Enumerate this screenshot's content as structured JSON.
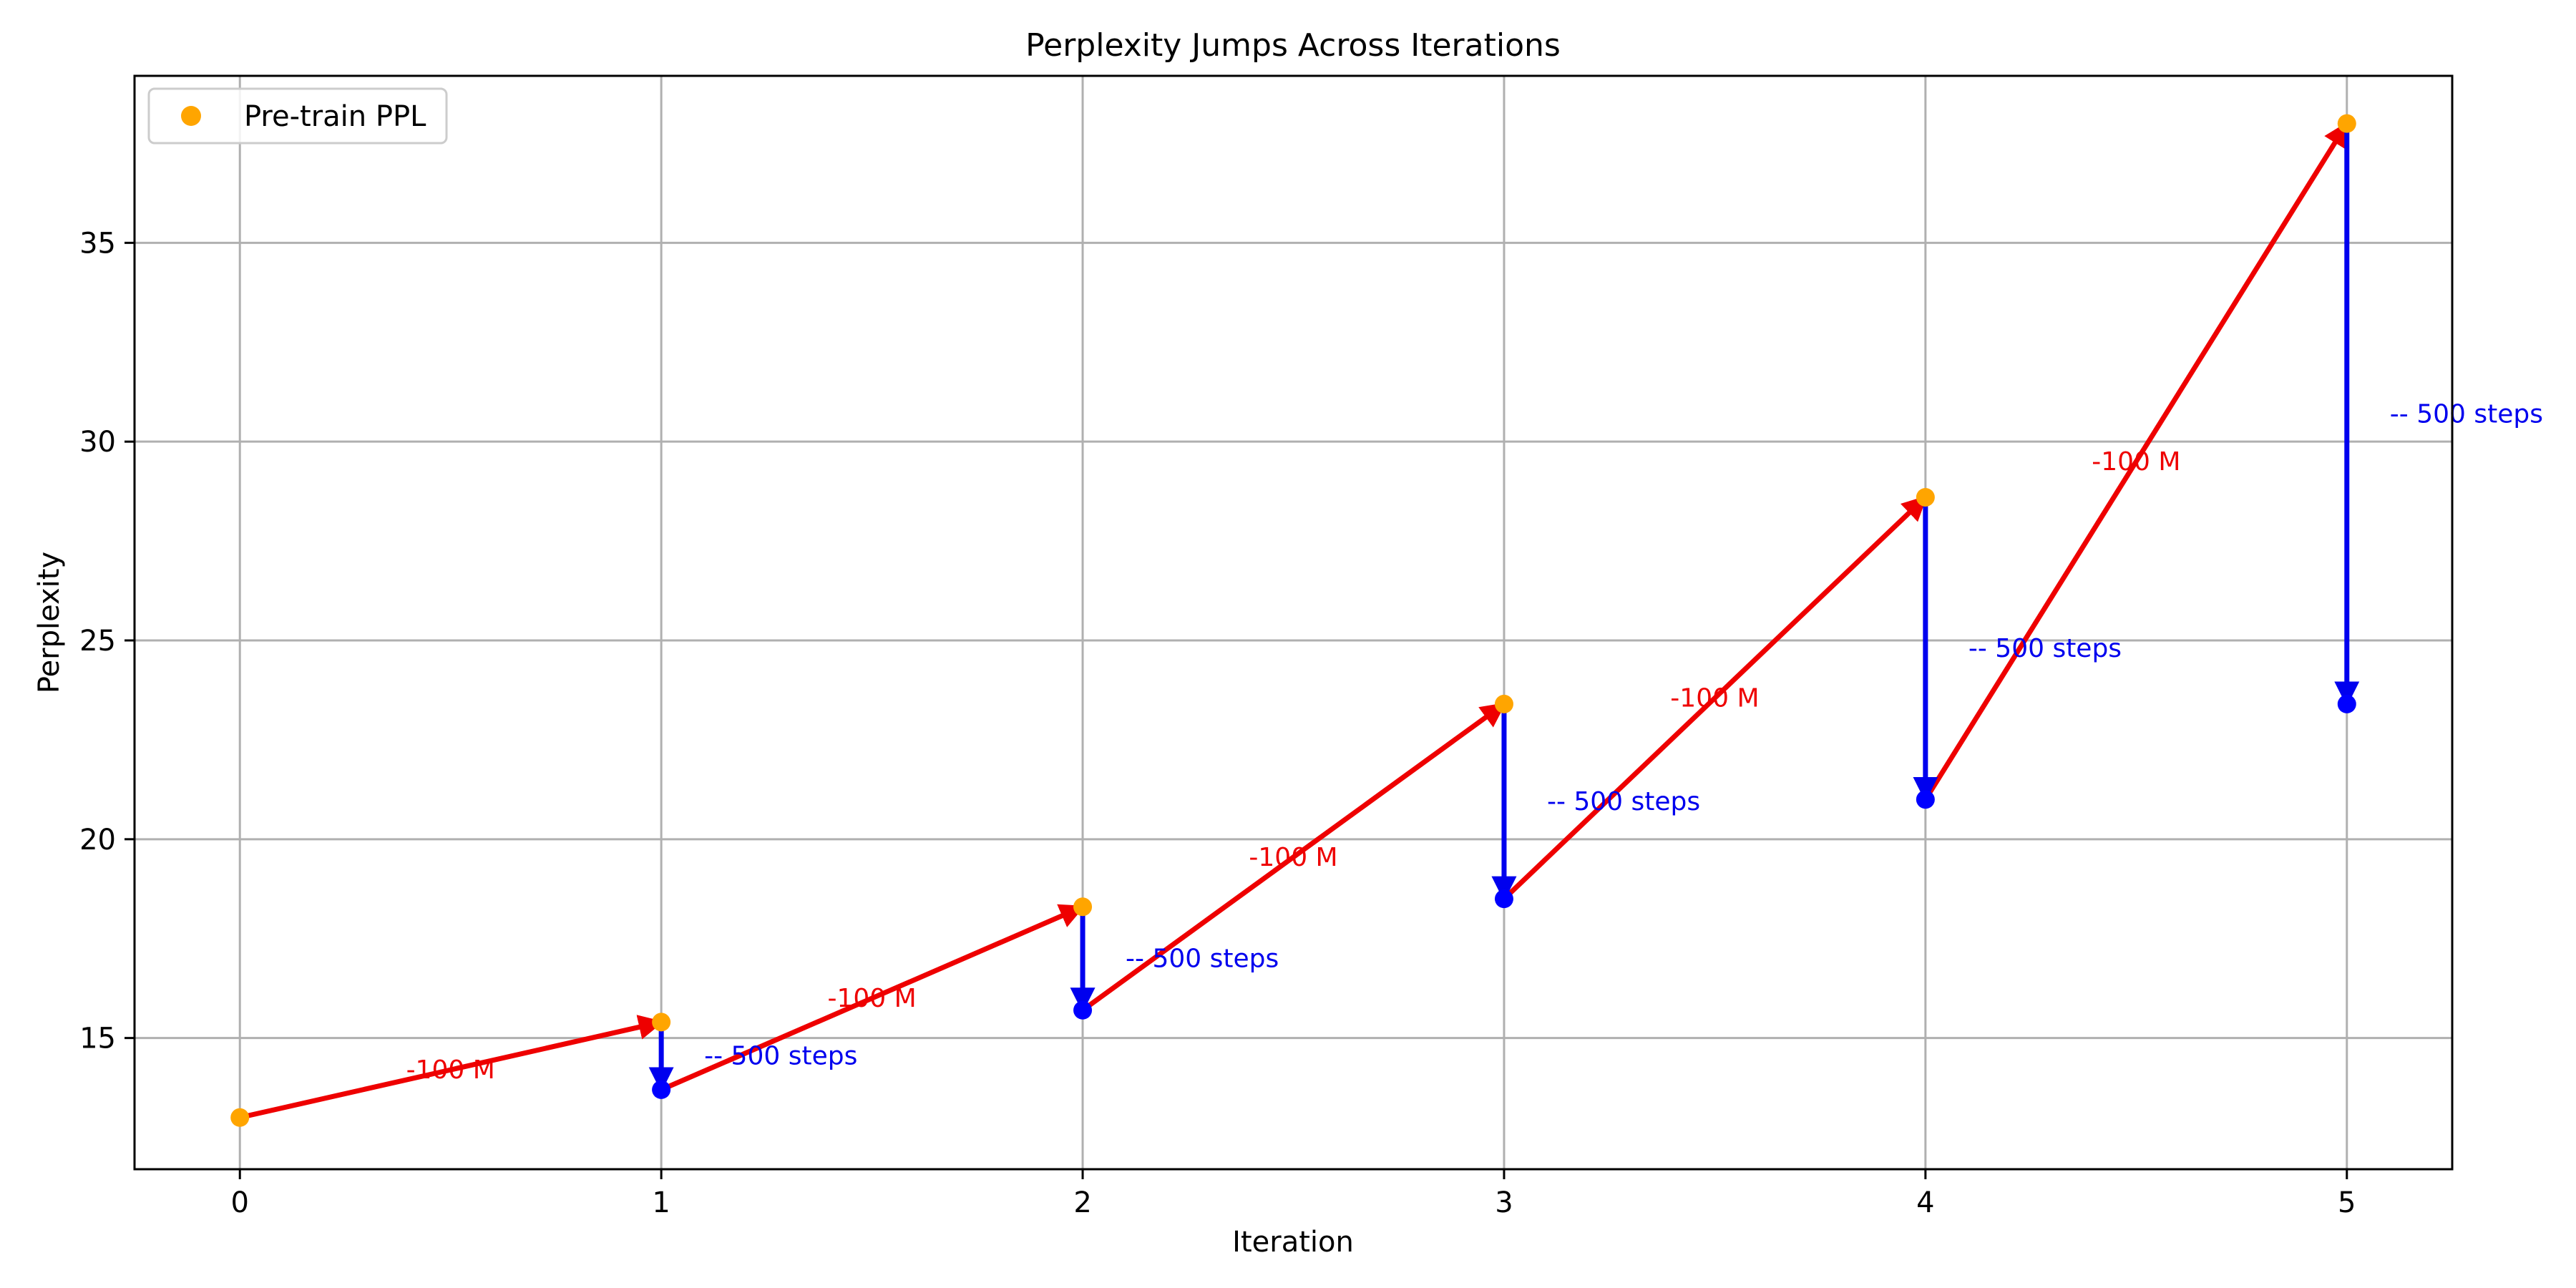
{
  "chart_data": {
    "type": "scatter",
    "title": "Perplexity Jumps Across Iterations",
    "xlabel": "Iteration",
    "ylabel": "Perplexity",
    "xlim": [
      -0.25,
      5.25
    ],
    "ylim": [
      11.7,
      39.2
    ],
    "xticks": [
      0,
      1,
      2,
      3,
      4,
      5
    ],
    "yticks": [
      15,
      20,
      25,
      30,
      35
    ],
    "grid": true,
    "legend": {
      "position": "top-left",
      "entries": [
        "Pre-train PPL"
      ]
    },
    "series": [
      {
        "name": "Pre-train PPL",
        "color": "#ffa500",
        "x": [
          0,
          1,
          2,
          3,
          4,
          5
        ],
        "y": [
          13.0,
          15.4,
          18.3,
          23.4,
          28.6,
          38.0
        ]
      },
      {
        "color": "#0000ff",
        "x": [
          1,
          2,
          3,
          4,
          5
        ],
        "y": [
          13.7,
          15.7,
          18.5,
          21.0,
          23.4
        ]
      }
    ],
    "red_arrows": {
      "color": "#ee0000",
      "label": "-100 M",
      "segments": [
        {
          "from": [
            0,
            13.0
          ],
          "to": [
            1,
            15.4
          ]
        },
        {
          "from": [
            1,
            13.7
          ],
          "to": [
            2,
            18.3
          ]
        },
        {
          "from": [
            2,
            15.7
          ],
          "to": [
            3,
            23.4
          ]
        },
        {
          "from": [
            3,
            18.5
          ],
          "to": [
            4,
            28.6
          ]
        },
        {
          "from": [
            4,
            21.0
          ],
          "to": [
            5,
            38.0
          ]
        }
      ]
    },
    "blue_arrows": {
      "color": "#0000ee",
      "label": "-- 500 steps",
      "segments": [
        {
          "from": [
            1,
            15.4
          ],
          "to": [
            1,
            13.7
          ]
        },
        {
          "from": [
            2,
            18.3
          ],
          "to": [
            2,
            15.7
          ]
        },
        {
          "from": [
            3,
            23.4
          ],
          "to": [
            3,
            18.5
          ]
        },
        {
          "from": [
            4,
            28.6
          ],
          "to": [
            4,
            21.0
          ]
        },
        {
          "from": [
            5,
            38.0
          ],
          "to": [
            5,
            23.4
          ]
        }
      ]
    }
  }
}
